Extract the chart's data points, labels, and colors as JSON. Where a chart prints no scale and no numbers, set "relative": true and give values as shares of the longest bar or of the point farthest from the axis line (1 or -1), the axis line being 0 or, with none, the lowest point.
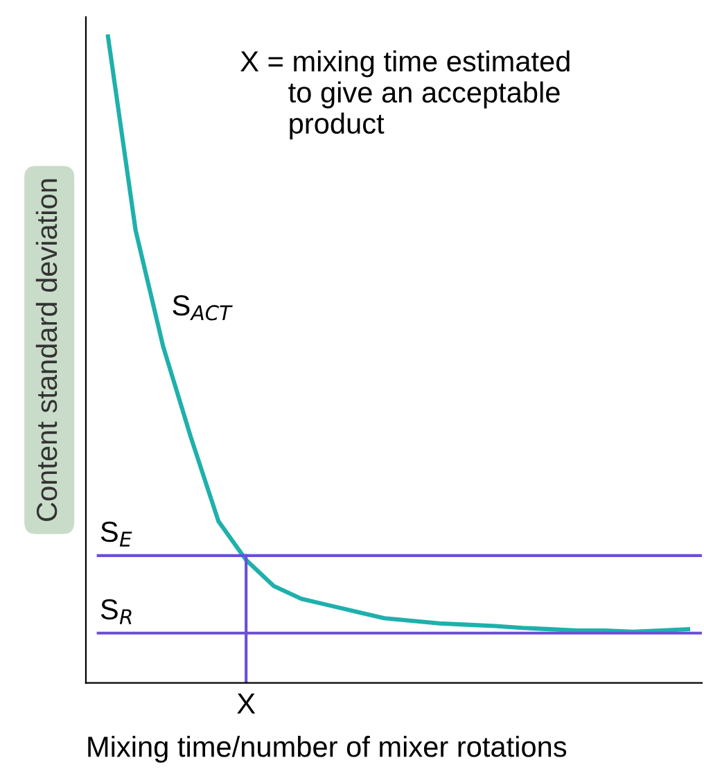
{
  "chart_data": {
    "type": "line",
    "relative": true,
    "xlabel": "Mixing time/number of mixer rotations",
    "ylabel": "Content standard deviation",
    "categories": [
      null,
      null,
      null,
      null,
      null,
      null,
      null,
      null,
      null,
      null,
      null,
      null,
      null,
      null,
      null,
      null,
      null,
      null,
      null,
      null,
      null,
      null
    ],
    "series": [
      {
        "name": "S$_{ACT}$",
        "color": "#1fb0ac",
        "values": [
          1.0,
          0.7,
          0.52,
          0.38,
          0.25,
          0.19,
          0.15,
          0.13,
          0.12,
          0.11,
          0.1,
          0.096,
          0.092,
          0.09,
          0.088,
          0.085,
          0.083,
          0.081,
          0.081,
          0.079,
          0.081,
          0.083
        ]
      }
    ],
    "ref_lines": [
      {
        "axis": "y",
        "value": 0.197,
        "label": "S$_{E}$",
        "color": "#6a4fd8",
        "line_style": "solid"
      },
      {
        "axis": "y",
        "value": 0.077,
        "label": "S$_{R}$",
        "color": "#6a4fd8",
        "line_style": "solid"
      }
    ],
    "annotations": [
      "X = mixing time estimated\n      to give an acceptable\n      product",
      "X"
    ],
    "grid": false,
    "legend": false,
    "marker": "none",
    "line_style": "solid"
  }
}
